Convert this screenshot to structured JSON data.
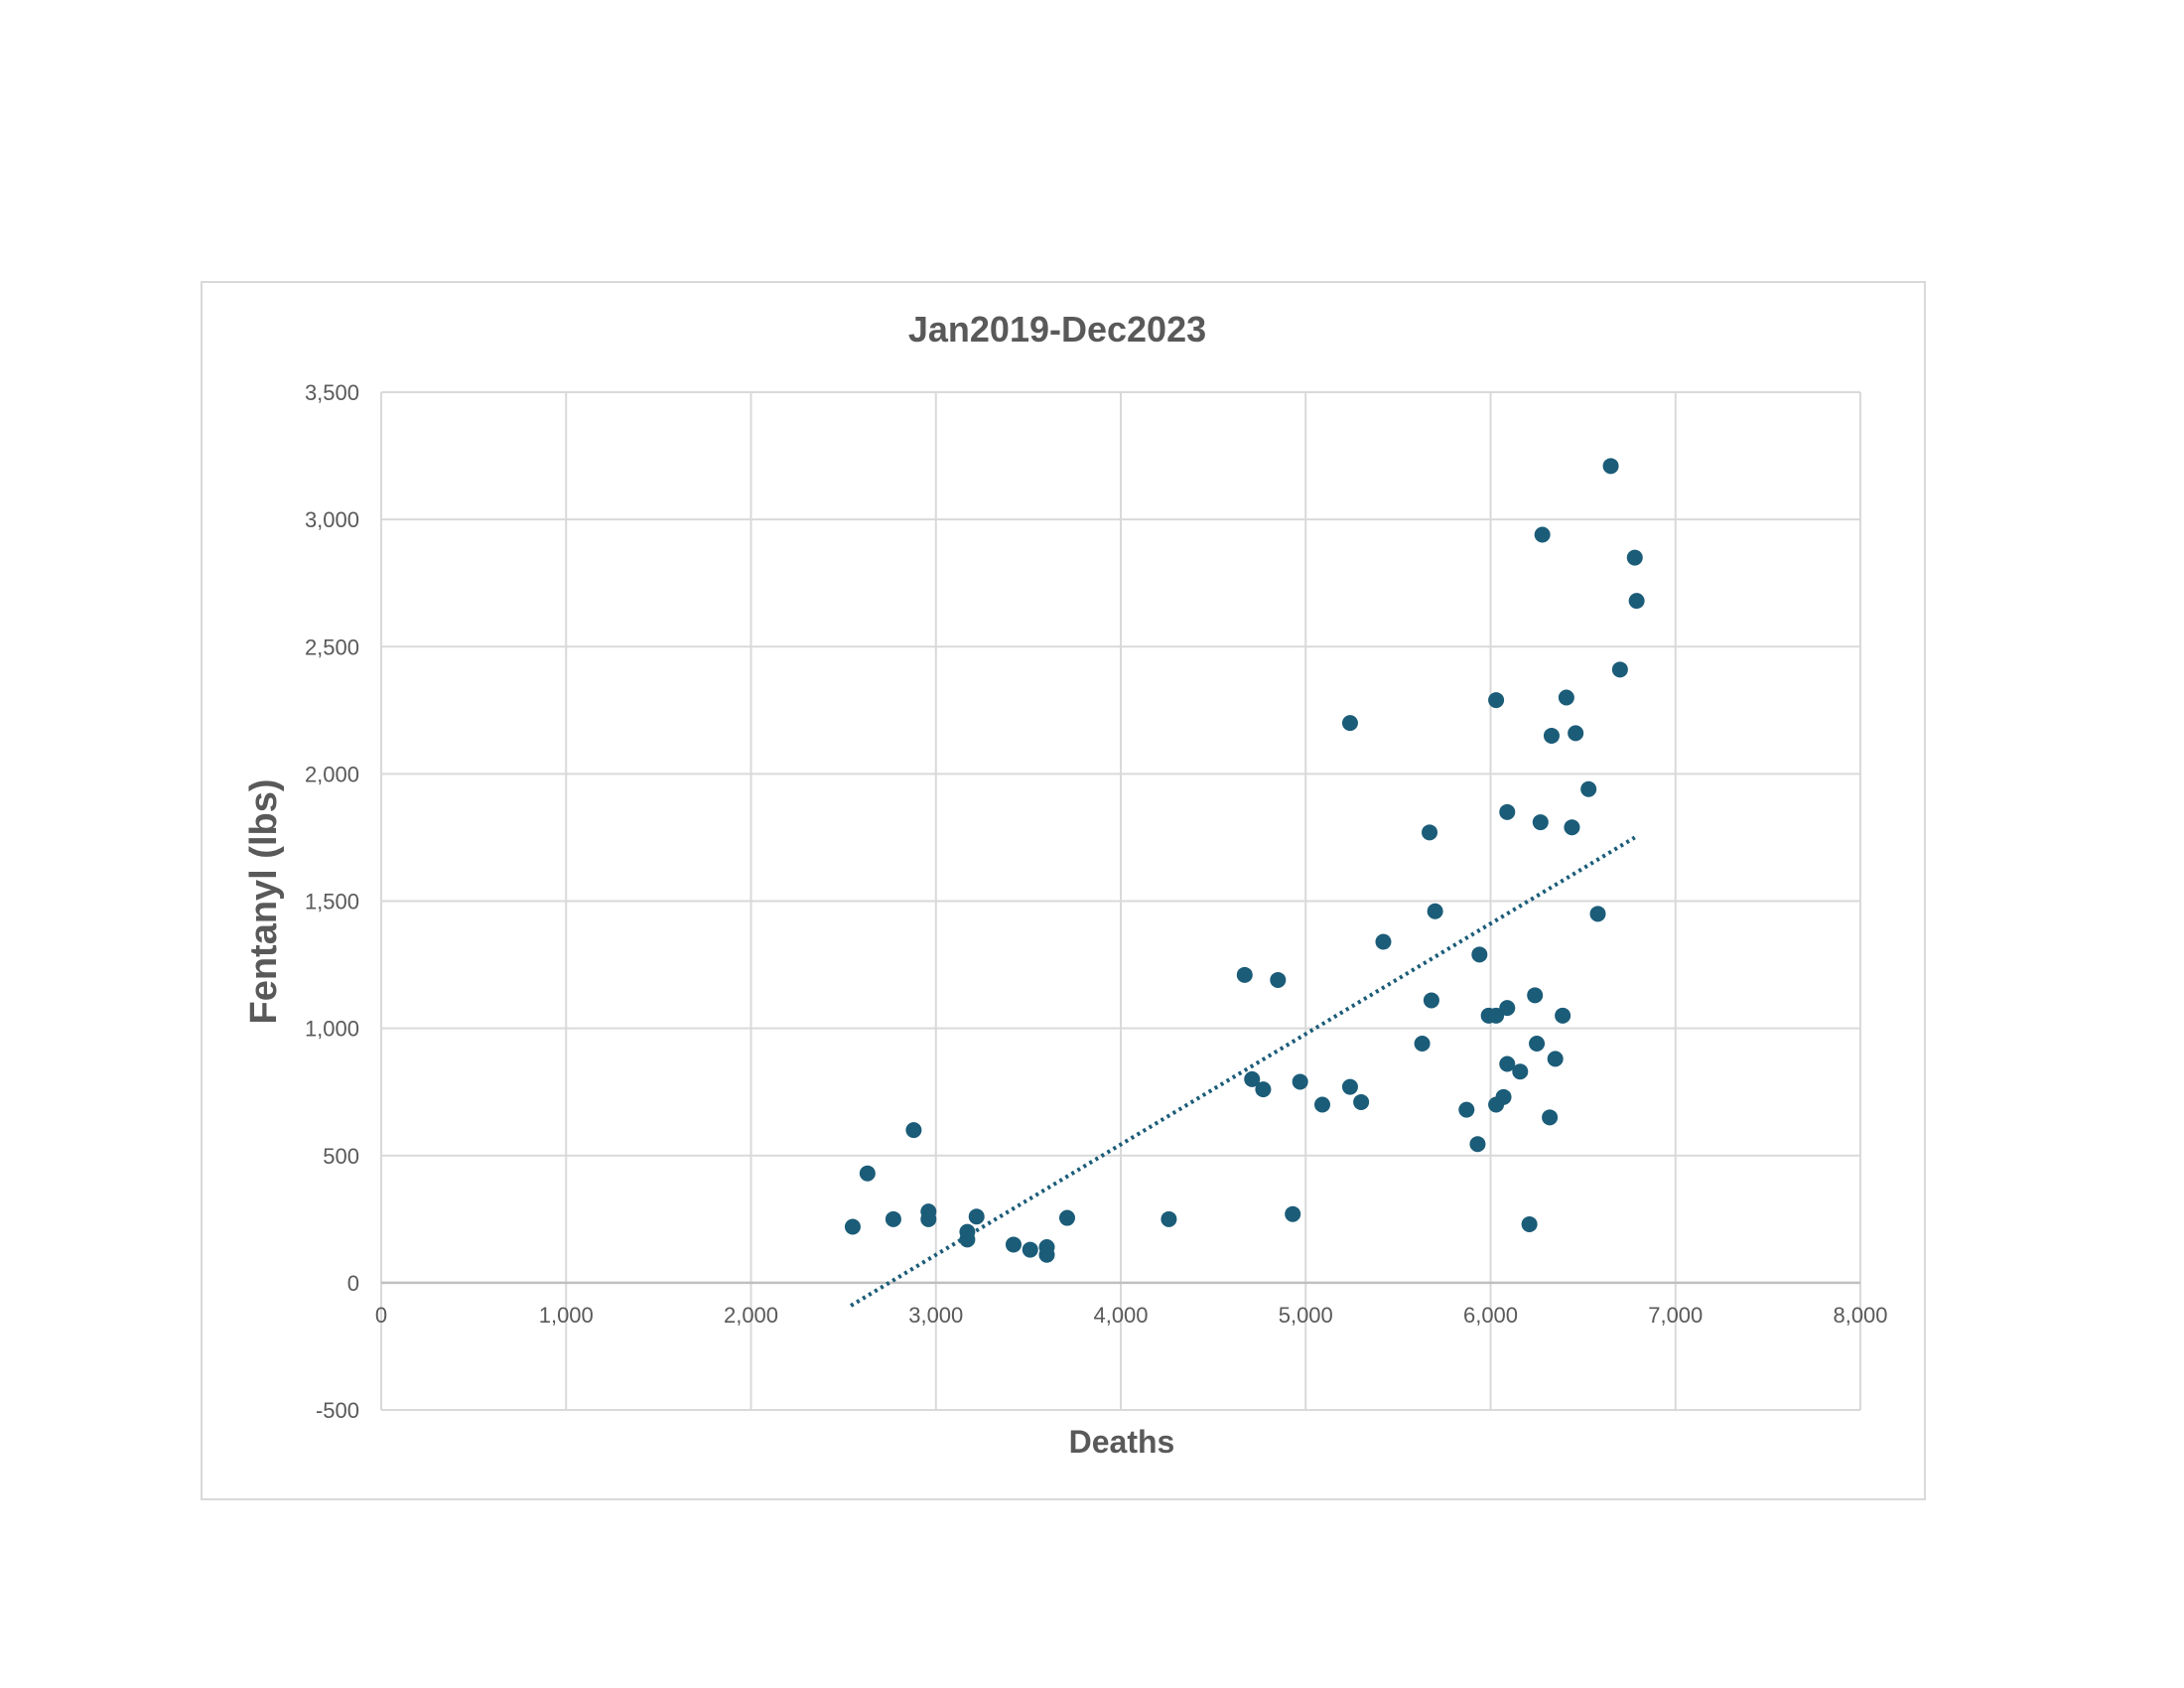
{
  "chart_data": {
    "type": "scatter",
    "title": "Jan2019-Dec2023",
    "xlabel": "Deaths",
    "ylabel": "Fentanyl (lbs)",
    "xlim": [
      0,
      8000
    ],
    "ylim": [
      -500,
      3500
    ],
    "x_ticks": [
      0,
      1000,
      2000,
      3000,
      4000,
      5000,
      6000,
      7000,
      8000
    ],
    "x_tick_labels": [
      "0",
      "1,000",
      "2,000",
      "3,000",
      "4,000",
      "5,000",
      "6,000",
      "7,000",
      "8,000"
    ],
    "y_ticks": [
      -500,
      0,
      500,
      1000,
      1500,
      2000,
      2500,
      3000,
      3500
    ],
    "y_tick_labels": [
      "-500",
      "0",
      "500",
      "1,000",
      "1,500",
      "2,000",
      "2,500",
      "3,000",
      "3,500"
    ],
    "grid": true,
    "legend": "none",
    "marker_color": "#1b5c78",
    "trendline": {
      "type": "linear",
      "style": "dotted",
      "color": "#1b5c78",
      "from": [
        2540,
        -90
      ],
      "to": [
        6780,
        1750
      ]
    },
    "points": [
      [
        2550,
        220
      ],
      [
        2630,
        430
      ],
      [
        2770,
        250
      ],
      [
        2880,
        600
      ],
      [
        2960,
        280
      ],
      [
        2960,
        250
      ],
      [
        3170,
        200
      ],
      [
        3170,
        170
      ],
      [
        3220,
        260
      ],
      [
        3420,
        150
      ],
      [
        3510,
        130
      ],
      [
        3600,
        110
      ],
      [
        3600,
        140
      ],
      [
        3710,
        255
      ],
      [
        4260,
        250
      ],
      [
        4670,
        1210
      ],
      [
        4710,
        800
      ],
      [
        4770,
        760
      ],
      [
        4850,
        1190
      ],
      [
        4930,
        270
      ],
      [
        4970,
        790
      ],
      [
        5090,
        700
      ],
      [
        5240,
        2200
      ],
      [
        5240,
        770
      ],
      [
        5300,
        710
      ],
      [
        5420,
        1340
      ],
      [
        5630,
        940
      ],
      [
        5670,
        1770
      ],
      [
        5680,
        1110
      ],
      [
        5700,
        1460
      ],
      [
        5870,
        680
      ],
      [
        5930,
        545
      ],
      [
        5940,
        1290
      ],
      [
        5990,
        1050
      ],
      [
        6030,
        1050
      ],
      [
        6030,
        2290
      ],
      [
        6030,
        700
      ],
      [
        6070,
        730
      ],
      [
        6090,
        860
      ],
      [
        6090,
        1080
      ],
      [
        6090,
        1850
      ],
      [
        6160,
        830
      ],
      [
        6210,
        230
      ],
      [
        6240,
        1130
      ],
      [
        6250,
        940
      ],
      [
        6270,
        1810
      ],
      [
        6280,
        2940
      ],
      [
        6320,
        650
      ],
      [
        6330,
        2150
      ],
      [
        6350,
        880
      ],
      [
        6390,
        1050
      ],
      [
        6410,
        2300
      ],
      [
        6440,
        1790
      ],
      [
        6460,
        2160
      ],
      [
        6530,
        1940
      ],
      [
        6580,
        1450
      ],
      [
        6650,
        3210
      ],
      [
        6700,
        2410
      ],
      [
        6780,
        2850
      ],
      [
        6790,
        2680
      ]
    ]
  }
}
